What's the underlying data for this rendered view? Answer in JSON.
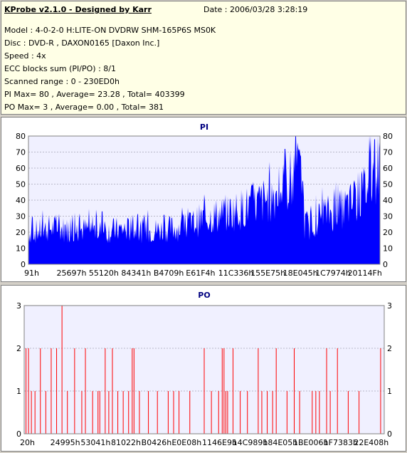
{
  "info": {
    "title": "KProbe v2.1.0 - Designed by Karr",
    "date": "Date : 2006/03/28 3:28:19",
    "lines": [
      "Model : 4-0-2-0 H:LITE-ON DVDRW SHM-165P6S MS0K",
      "Disc : DVD-R , DAXON0165 [Daxon Inc.]",
      "Speed : 4x",
      "ECC blocks sum (PI/PO) : 8/1",
      "Scanned range : 0 - 230ED0h",
      "PI Max= 80 , Average= 23.28 , Total= 403399",
      "PO Max= 3 , Average= 0.00 , Total= 381"
    ]
  },
  "colors": {
    "pi": "#0000ff",
    "po": "#ff0000",
    "plot_bg": "#f0f0ff",
    "title": "#000080"
  },
  "chart_data": [
    {
      "type": "area",
      "title": "PI",
      "ylim": [
        0,
        80
      ],
      "yticks": [
        0,
        10,
        20,
        30,
        40,
        50,
        60,
        70,
        80
      ],
      "xticks": [
        "91h",
        "25697h",
        "55120h",
        "84341h",
        "B4709h",
        "E61F4h",
        "11C336h",
        "155E75h",
        "18E045h",
        "1C7974h",
        "20114Fh"
      ],
      "grid": true,
      "profile": [
        [
          0,
          22
        ],
        [
          0.03,
          23
        ],
        [
          0.06,
          25
        ],
        [
          0.09,
          25
        ],
        [
          0.12,
          23
        ],
        [
          0.15,
          24
        ],
        [
          0.18,
          24
        ],
        [
          0.22,
          23
        ],
        [
          0.26,
          24
        ],
        [
          0.3,
          24
        ],
        [
          0.34,
          23
        ],
        [
          0.38,
          24
        ],
        [
          0.42,
          25
        ],
        [
          0.46,
          27
        ],
        [
          0.48,
          30
        ],
        [
          0.52,
          33
        ],
        [
          0.56,
          35
        ],
        [
          0.6,
          38
        ],
        [
          0.64,
          41
        ],
        [
          0.68,
          45
        ],
        [
          0.71,
          50
        ],
        [
          0.74,
          55
        ],
        [
          0.77,
          60
        ],
        [
          0.78,
          62
        ],
        [
          0.785,
          28
        ],
        [
          0.8,
          27
        ],
        [
          0.83,
          33
        ],
        [
          0.86,
          36
        ],
        [
          0.89,
          38
        ],
        [
          0.92,
          42
        ],
        [
          0.95,
          49
        ],
        [
          0.97,
          58
        ],
        [
          0.99,
          68
        ],
        [
          1.0,
          70
        ]
      ],
      "peaks": [
        [
          0.73,
          72
        ],
        [
          0.76,
          80
        ],
        [
          0.765,
          76
        ],
        [
          0.97,
          80
        ],
        [
          0.985,
          78
        ],
        [
          0.34,
          34
        ],
        [
          0.21,
          33
        ],
        [
          0.46,
          32
        ],
        [
          0.01,
          30
        ]
      ]
    },
    {
      "type": "bar",
      "title": "PO",
      "ylim": [
        0,
        3
      ],
      "yticks": [
        0,
        1,
        2,
        3
      ],
      "xticks": [
        "20h",
        "24995h",
        "53041h",
        "81022h",
        "B0426h",
        "E0E08h",
        "1146E9h",
        "14C989h",
        "184E05h",
        "1BE006h",
        "1F7383h",
        "22E408h"
      ],
      "grid": true,
      "events": [
        [
          0.005,
          2
        ],
        [
          0.012,
          2
        ],
        [
          0.02,
          1
        ],
        [
          0.03,
          1
        ],
        [
          0.045,
          2
        ],
        [
          0.06,
          1
        ],
        [
          0.075,
          2
        ],
        [
          0.09,
          2
        ],
        [
          0.105,
          3
        ],
        [
          0.12,
          1
        ],
        [
          0.14,
          2
        ],
        [
          0.16,
          1
        ],
        [
          0.17,
          2
        ],
        [
          0.19,
          1
        ],
        [
          0.205,
          1
        ],
        [
          0.21,
          1
        ],
        [
          0.225,
          2
        ],
        [
          0.235,
          1
        ],
        [
          0.245,
          2
        ],
        [
          0.26,
          1
        ],
        [
          0.275,
          1
        ],
        [
          0.29,
          1
        ],
        [
          0.3,
          2
        ],
        [
          0.305,
          2
        ],
        [
          0.32,
          1
        ],
        [
          0.345,
          1
        ],
        [
          0.37,
          1
        ],
        [
          0.4,
          1
        ],
        [
          0.415,
          1
        ],
        [
          0.43,
          1
        ],
        [
          0.46,
          1
        ],
        [
          0.5,
          2
        ],
        [
          0.52,
          1
        ],
        [
          0.54,
          1
        ],
        [
          0.55,
          2
        ],
        [
          0.555,
          2
        ],
        [
          0.56,
          1
        ],
        [
          0.565,
          1
        ],
        [
          0.58,
          2
        ],
        [
          0.6,
          1
        ],
        [
          0.62,
          1
        ],
        [
          0.65,
          2
        ],
        [
          0.66,
          1
        ],
        [
          0.675,
          1
        ],
        [
          0.69,
          1
        ],
        [
          0.7,
          2
        ],
        [
          0.73,
          1
        ],
        [
          0.75,
          2
        ],
        [
          0.765,
          1
        ],
        [
          0.8,
          1
        ],
        [
          0.81,
          1
        ],
        [
          0.82,
          1
        ],
        [
          0.84,
          2
        ],
        [
          0.85,
          1
        ],
        [
          0.87,
          2
        ],
        [
          0.9,
          1
        ],
        [
          0.93,
          1
        ],
        [
          0.99,
          2
        ]
      ]
    }
  ]
}
